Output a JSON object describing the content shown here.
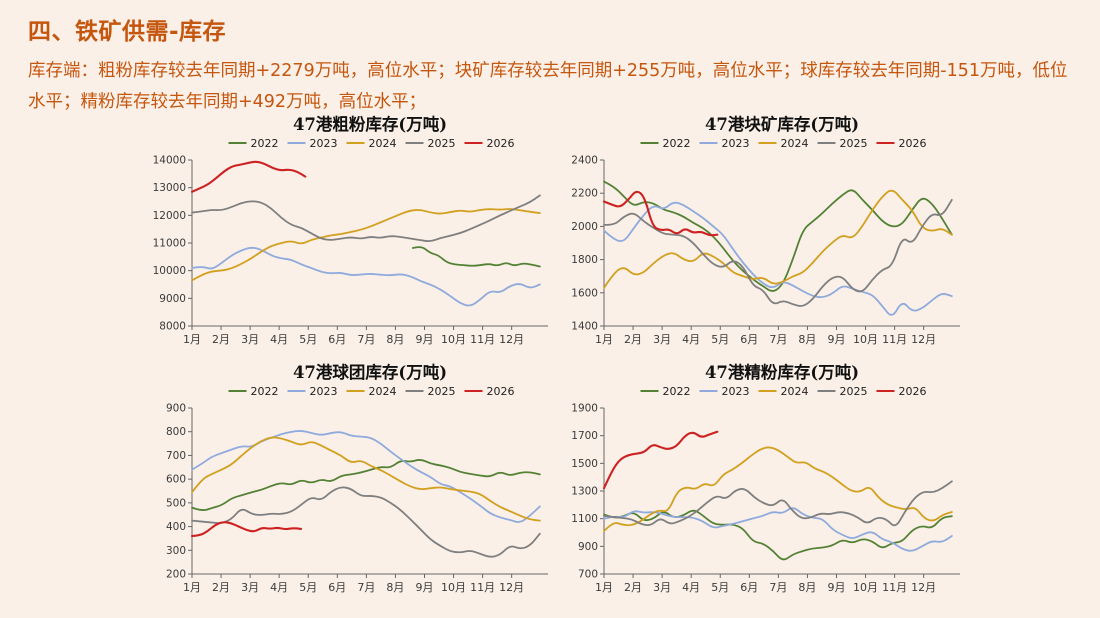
{
  "page": {
    "background": "#FAF0E8",
    "accent": "#C5560E"
  },
  "header": {
    "title": "四、铁矿供需-库存"
  },
  "summary": {
    "text": "库存端：粗粉库存较去年同期+2279万吨，高位水平；块矿库存较去年同期+255万吨，高位水平；球库存较去年同期-151万吨，低位水平；精粉库存较去年同期+492万吨，高位水平；"
  },
  "colors": {
    "2022": "#548235",
    "2023": "#8FAADC",
    "2024": "#D2A01E",
    "2025": "#7F7F7F",
    "2026": "#CE2121"
  },
  "x_axis_labels": [
    "1月",
    "2月",
    "3月",
    "4月",
    "5月",
    "6月",
    "7月",
    "8月",
    "9月",
    "10月",
    "11月",
    "12月"
  ],
  "chart_data": [
    {
      "type": "line",
      "title": "47港粗粉库存(万吨)",
      "xlabel": "",
      "ylabel": "",
      "ylim": [
        8000,
        14000
      ],
      "ytick_step": 1000,
      "grid": false,
      "legend_position": "top",
      "legend": [
        "2022",
        "2023",
        "2024",
        "2025",
        "2026"
      ],
      "series": [
        {
          "name": "2022",
          "x_start": 8.6,
          "x_end": 12.97,
          "values": [
            10820,
            10900,
            10640,
            10560,
            10300,
            10220,
            10200,
            10170,
            10200,
            10250,
            10170,
            10300,
            10170,
            10270,
            10220,
            10150
          ]
        },
        {
          "name": "2023",
          "x_start": 1,
          "x_end": 12.97,
          "values": [
            10100,
            10160,
            10040,
            10280,
            10560,
            10740,
            10850,
            10760,
            10540,
            10440,
            10400,
            10220,
            10100,
            9950,
            9900,
            9930,
            9830,
            9860,
            9890,
            9850,
            9830,
            9880,
            9800,
            9620,
            9500,
            9320,
            9080,
            8820,
            8700,
            8950,
            9280,
            9200,
            9450,
            9550,
            9350,
            9500
          ]
        },
        {
          "name": "2024",
          "x_start": 1,
          "x_end": 12.97,
          "values": [
            9650,
            9850,
            9980,
            10000,
            10080,
            10250,
            10450,
            10700,
            10900,
            11000,
            11080,
            10950,
            11120,
            11200,
            11280,
            11320,
            11400,
            11480,
            11600,
            11750,
            11900,
            12050,
            12180,
            12200,
            12100,
            12050,
            12120,
            12180,
            12120,
            12200,
            12230,
            12200,
            12240,
            12180,
            12130,
            12080
          ]
        },
        {
          "name": "2025",
          "x_start": 1,
          "x_end": 12.97,
          "values": [
            12100,
            12140,
            12200,
            12180,
            12300,
            12450,
            12520,
            12470,
            12250,
            11900,
            11650,
            11550,
            11350,
            11150,
            11100,
            11160,
            11210,
            11150,
            11230,
            11180,
            11260,
            11220,
            11160,
            11100,
            11050,
            11180,
            11260,
            11360,
            11500,
            11660,
            11820,
            12000,
            12160,
            12320,
            12470,
            12720
          ]
        },
        {
          "name": "2026",
          "x_start": 1,
          "x_end": 4.9,
          "values": [
            12850,
            12980,
            13120,
            13350,
            13600,
            13780,
            13830,
            13900,
            13950,
            13860,
            13700,
            13620,
            13660,
            13580,
            13400
          ]
        }
      ]
    },
    {
      "type": "line",
      "title": "47港块矿库存(万吨)",
      "xlabel": "",
      "ylabel": "",
      "ylim": [
        1400,
        2400
      ],
      "ytick_step": 200,
      "grid": false,
      "legend_position": "top",
      "legend": [
        "2022",
        "2023",
        "2024",
        "2025",
        "2026"
      ],
      "series": [
        {
          "name": "2022",
          "x_start": 1,
          "x_end": 12.97,
          "values": [
            2270,
            2240,
            2180,
            2120,
            2150,
            2140,
            2100,
            2085,
            2060,
            2020,
            1990,
            1940,
            1870,
            1790,
            1730,
            1680,
            1640,
            1600,
            1650,
            1800,
            1980,
            2030,
            2080,
            2140,
            2190,
            2230,
            2160,
            2100,
            2030,
            1995,
            2010,
            2100,
            2180,
            2140,
            2050,
            1950
          ]
        },
        {
          "name": "2023",
          "x_start": 1,
          "x_end": 12.97,
          "values": [
            1975,
            1920,
            1905,
            1990,
            2070,
            2130,
            2100,
            2150,
            2130,
            2090,
            2050,
            2000,
            1950,
            1860,
            1780,
            1710,
            1655,
            1625,
            1670,
            1645,
            1610,
            1580,
            1570,
            1595,
            1645,
            1625,
            1605,
            1590,
            1520,
            1445,
            1555,
            1485,
            1505,
            1555,
            1600,
            1580
          ]
        },
        {
          "name": "2024",
          "x_start": 1,
          "x_end": 12.97,
          "values": [
            1630,
            1720,
            1760,
            1705,
            1720,
            1780,
            1825,
            1845,
            1800,
            1785,
            1845,
            1820,
            1780,
            1720,
            1700,
            1680,
            1695,
            1650,
            1665,
            1700,
            1720,
            1780,
            1850,
            1905,
            1950,
            1925,
            2000,
            2100,
            2180,
            2230,
            2160,
            2100,
            1990,
            1970,
            1990,
            1950
          ]
        },
        {
          "name": "2025",
          "x_start": 1,
          "x_end": 12.97,
          "values": [
            2010,
            2005,
            2060,
            2085,
            2030,
            1990,
            1955,
            1950,
            1945,
            1900,
            1830,
            1770,
            1750,
            1800,
            1760,
            1640,
            1620,
            1525,
            1555,
            1530,
            1515,
            1560,
            1640,
            1695,
            1700,
            1620,
            1600,
            1680,
            1740,
            1760,
            1940,
            1890,
            2000,
            2080,
            2060,
            2160
          ]
        },
        {
          "name": "2026",
          "x_start": 1,
          "x_end": 4.9,
          "values": [
            2150,
            2130,
            2115,
            2160,
            2220,
            2180,
            2000,
            1975,
            1985,
            1950,
            1990,
            1960,
            1970,
            1945,
            1950
          ]
        }
      ]
    },
    {
      "type": "line",
      "title": "47港球团库存(万吨)",
      "xlabel": "",
      "ylabel": "",
      "ylim": [
        200,
        900
      ],
      "ytick_step": 100,
      "grid": false,
      "legend_position": "top",
      "legend": [
        "2022",
        "2023",
        "2024",
        "2025",
        "2026"
      ],
      "series": [
        {
          "name": "2022",
          "x_start": 1,
          "x_end": 12.97,
          "values": [
            480,
            465,
            478,
            490,
            520,
            532,
            545,
            555,
            572,
            585,
            575,
            598,
            582,
            600,
            588,
            615,
            620,
            628,
            640,
            652,
            648,
            680,
            672,
            685,
            665,
            658,
            648,
            630,
            622,
            615,
            610,
            632,
            614,
            628,
            630,
            620
          ]
        },
        {
          "name": "2023",
          "x_start": 1,
          "x_end": 12.97,
          "values": [
            640,
            665,
            695,
            710,
            725,
            740,
            735,
            760,
            775,
            790,
            800,
            805,
            795,
            785,
            795,
            800,
            782,
            780,
            775,
            750,
            715,
            685,
            655,
            630,
            610,
            578,
            570,
            545,
            518,
            488,
            455,
            438,
            428,
            415,
            445,
            485
          ]
        },
        {
          "name": "2024",
          "x_start": 1,
          "x_end": 12.97,
          "values": [
            545,
            600,
            622,
            640,
            662,
            700,
            735,
            762,
            778,
            772,
            758,
            742,
            760,
            742,
            720,
            700,
            668,
            680,
            655,
            638,
            615,
            590,
            568,
            556,
            562,
            566,
            558,
            552,
            548,
            538,
            508,
            482,
            465,
            446,
            430,
            425
          ]
        },
        {
          "name": "2025",
          "x_start": 1,
          "x_end": 12.97,
          "values": [
            425,
            421,
            417,
            413,
            432,
            480,
            452,
            448,
            455,
            452,
            462,
            492,
            525,
            510,
            548,
            568,
            560,
            528,
            530,
            524,
            500,
            470,
            430,
            388,
            345,
            318,
            295,
            290,
            300,
            285,
            270,
            280,
            322,
            305,
            318,
            370
          ]
        },
        {
          "name": "2026",
          "x_start": 1,
          "x_end": 4.75,
          "values": [
            360,
            362,
            380,
            408,
            420,
            415,
            400,
            385,
            378,
            396,
            390,
            396,
            388,
            394,
            390
          ]
        }
      ]
    },
    {
      "type": "line",
      "title": "47港精粉库存(万吨)",
      "xlabel": "",
      "ylabel": "",
      "ylim": [
        700,
        1900
      ],
      "ytick_step": 200,
      "grid": false,
      "legend_position": "top",
      "legend": [
        "2022",
        "2023",
        "2024",
        "2025",
        "2026"
      ],
      "series": [
        {
          "name": "2022",
          "x_start": 1,
          "x_end": 12.97,
          "values": [
            1130,
            1102,
            1118,
            1150,
            1082,
            1100,
            1160,
            1105,
            1122,
            1170,
            1120,
            1062,
            1055,
            1060,
            1030,
            932,
            922,
            868,
            790,
            842,
            866,
            886,
            890,
            906,
            950,
            922,
            956,
            938,
            880,
            926,
            932,
            1018,
            1050,
            1028,
            1108,
            1118
          ]
        },
        {
          "name": "2023",
          "x_start": 1,
          "x_end": 12.97,
          "values": [
            1100,
            1118,
            1108,
            1160,
            1142,
            1150,
            1132,
            1110,
            1112,
            1108,
            1080,
            1030,
            1048,
            1062,
            1082,
            1102,
            1120,
            1152,
            1136,
            1190,
            1130,
            1106,
            1100,
            1020,
            982,
            952,
            986,
            1010,
            950,
            930,
            880,
            862,
            900,
            940,
            928,
            975
          ]
        },
        {
          "name": "2024",
          "x_start": 1,
          "x_end": 12.97,
          "values": [
            1010,
            1078,
            1056,
            1050,
            1080,
            1130,
            1162,
            1148,
            1298,
            1330,
            1310,
            1358,
            1330,
            1420,
            1452,
            1498,
            1552,
            1600,
            1620,
            1598,
            1550,
            1500,
            1512,
            1462,
            1440,
            1400,
            1348,
            1300,
            1292,
            1338,
            1250,
            1200,
            1180,
            1165,
            1185,
            1100,
            1080,
            1128,
            1148
          ]
        },
        {
          "name": "2025",
          "x_start": 1,
          "x_end": 12.97,
          "values": [
            1120,
            1112,
            1105,
            1095,
            1058,
            1050,
            1108,
            1058,
            1080,
            1112,
            1160,
            1220,
            1268,
            1240,
            1308,
            1320,
            1252,
            1210,
            1190,
            1250,
            1160,
            1100,
            1106,
            1140,
            1130,
            1150,
            1140,
            1110,
            1060,
            1110,
            1100,
            1030,
            1150,
            1250,
            1298,
            1288,
            1320,
            1370
          ]
        },
        {
          "name": "2026",
          "x_start": 1,
          "x_end": 4.9,
          "values": [
            1320,
            1450,
            1530,
            1560,
            1570,
            1580,
            1640,
            1615,
            1600,
            1625,
            1700,
            1730,
            1685,
            1708,
            1728
          ]
        }
      ]
    }
  ]
}
